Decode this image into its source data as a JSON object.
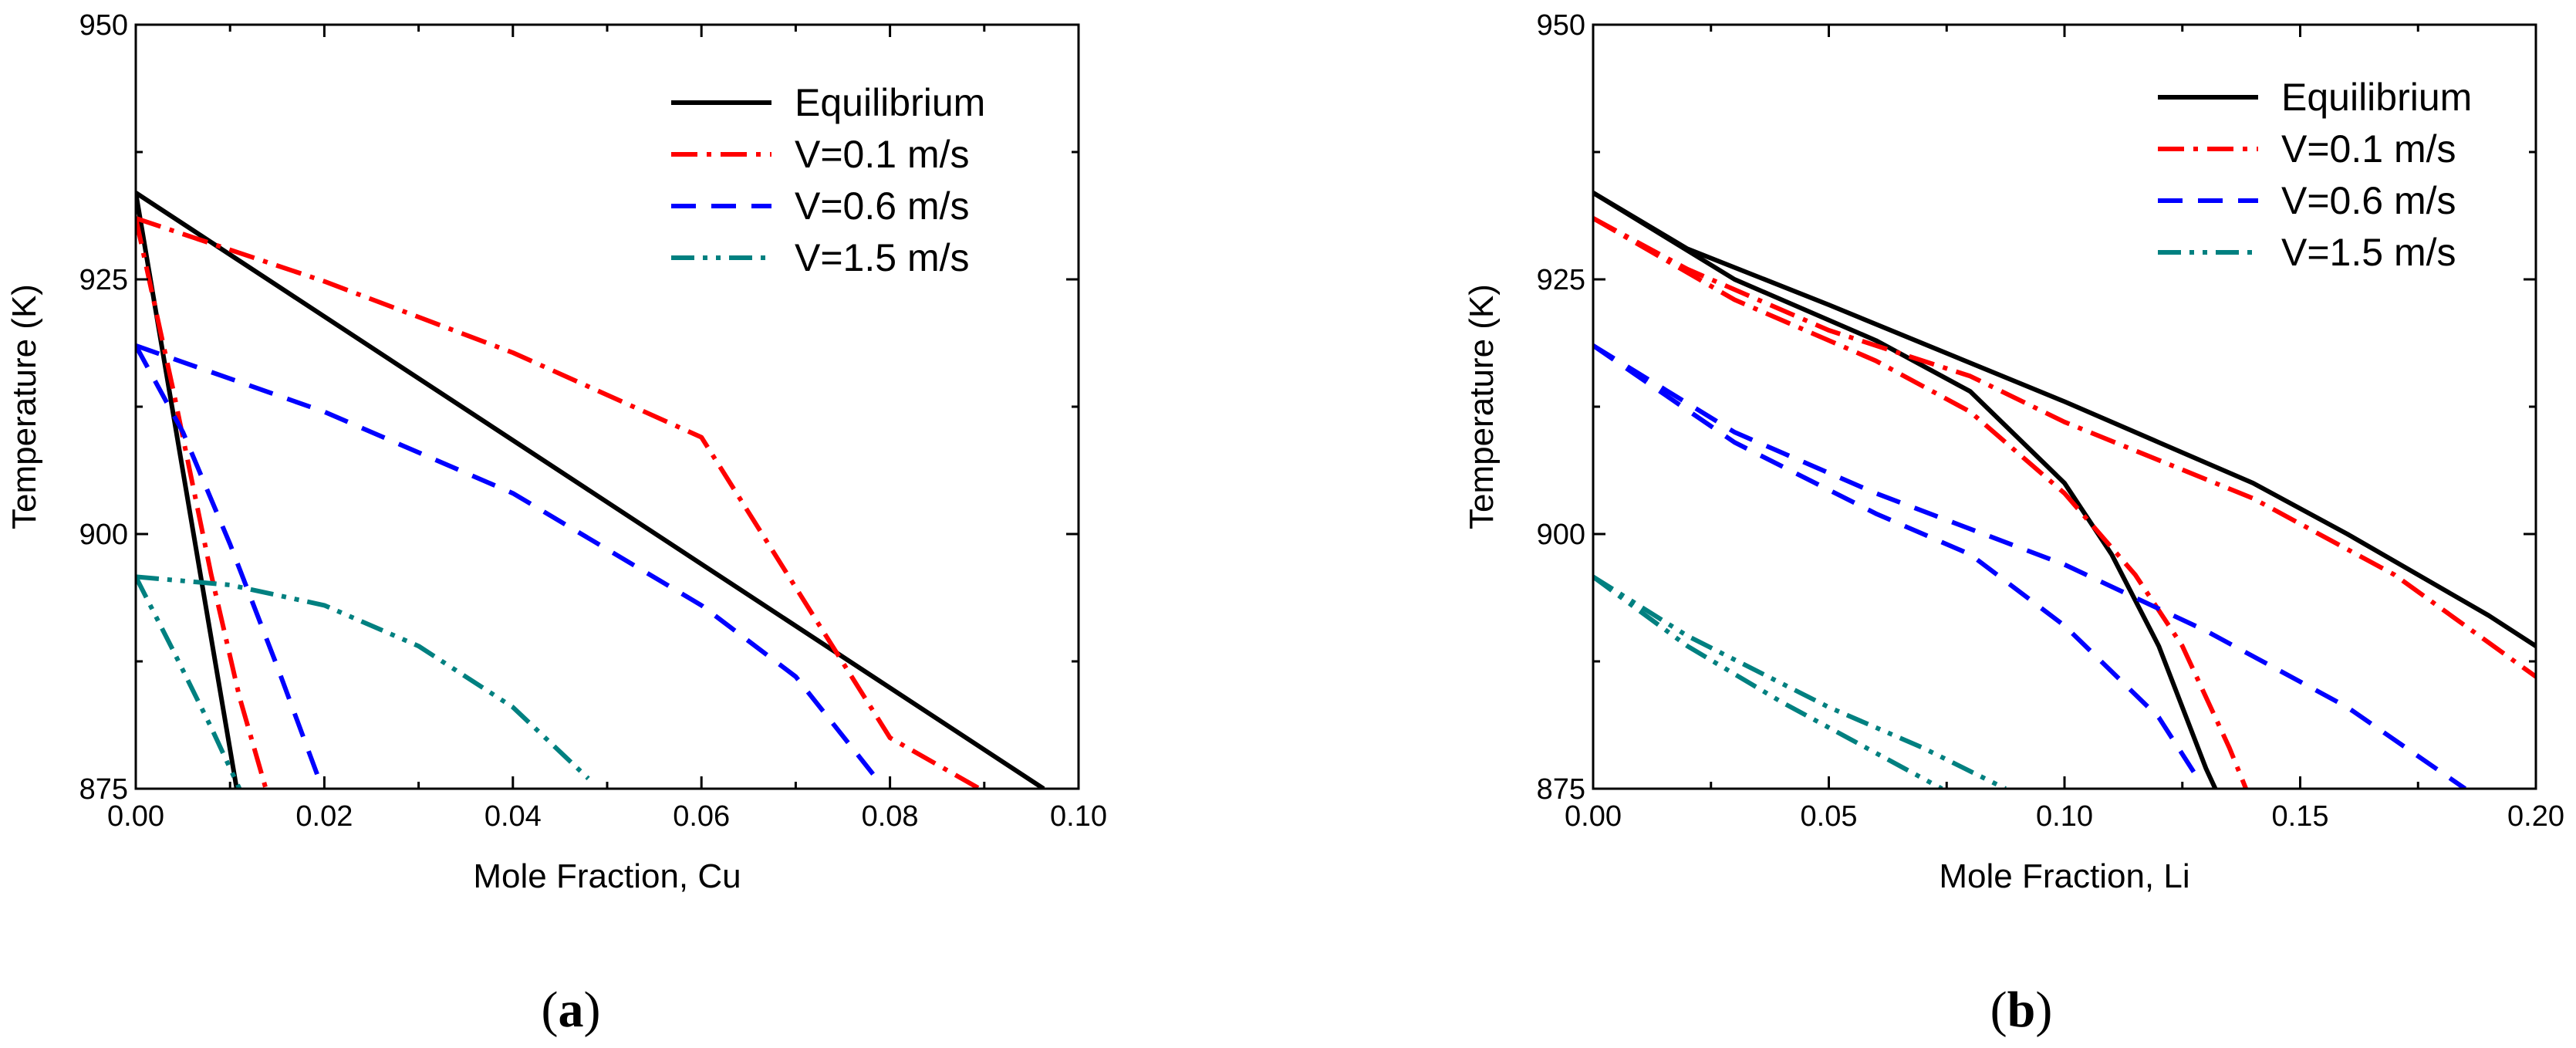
{
  "chart_data": [
    {
      "type": "line",
      "panel": "a",
      "xlabel": "Mole Fraction, Cu",
      "ylabel": "Temperature (K)",
      "xlim": [
        0.0,
        0.1
      ],
      "ylim": [
        875,
        950
      ],
      "xticks": [
        "0.00",
        "0.02",
        "0.04",
        "0.06",
        "0.08",
        "0.10"
      ],
      "yticks": [
        "875",
        "900",
        "925",
        "950"
      ],
      "legend_position": "top-right",
      "series": [
        {
          "name": "Equilibrium",
          "style": "solid",
          "color": "#000000",
          "points": [
            [
              0.0,
              933.5
            ],
            [
              0.0963,
              875
            ]
          ]
        },
        {
          "name": "Equilibrium",
          "style": "solid",
          "color": "#000000",
          "points": [
            [
              0.0,
              933.5
            ],
            [
              0.0107,
              875
            ]
          ]
        },
        {
          "name": "V=0.1 m/s",
          "style": "dashdot",
          "color": "#ff0000",
          "points": [
            [
              0.0,
              931.0
            ],
            [
              0.02,
              924.8
            ],
            [
              0.04,
              917.8
            ],
            [
              0.06,
              909.5
            ],
            [
              0.08,
              880.0
            ],
            [
              0.0895,
              875
            ]
          ]
        },
        {
          "name": "V=0.1 m/s",
          "style": "dashdot",
          "color": "#ff0000",
          "points": [
            [
              0.0,
              931.0
            ],
            [
              0.004,
              914.0
            ],
            [
              0.008,
              896.0
            ],
            [
              0.011,
              884.0
            ],
            [
              0.0138,
              875
            ]
          ]
        },
        {
          "name": "V=0.6 m/s",
          "style": "dashed",
          "color": "#0000ff",
          "points": [
            [
              0.0,
              918.5
            ],
            [
              0.02,
              912.0
            ],
            [
              0.04,
              904.0
            ],
            [
              0.06,
              893.0
            ],
            [
              0.07,
              886.0
            ],
            [
              0.079,
              875.5
            ]
          ]
        },
        {
          "name": "V=0.6 m/s",
          "style": "dashed",
          "color": "#0000ff",
          "points": [
            [
              0.0,
              918.5
            ],
            [
              0.005,
              910.0
            ],
            [
              0.01,
              899.0
            ],
            [
              0.015,
              887.0
            ],
            [
              0.0198,
              875
            ]
          ]
        },
        {
          "name": "V=1.5 m/s",
          "style": "dashdotdot",
          "color": "#008080",
          "points": [
            [
              0.0,
              895.8
            ],
            [
              0.01,
              895.0
            ],
            [
              0.02,
              893.0
            ],
            [
              0.03,
              889.0
            ],
            [
              0.04,
              883.0
            ],
            [
              0.048,
              876.0
            ]
          ]
        },
        {
          "name": "V=1.5 m/s",
          "style": "dashdotdot",
          "color": "#008080",
          "points": [
            [
              0.0,
              895.8
            ],
            [
              0.004,
              888.5
            ],
            [
              0.008,
              881.0
            ],
            [
              0.011,
              875
            ]
          ]
        }
      ]
    },
    {
      "type": "line",
      "panel": "b",
      "xlabel": "Mole Fraction, Li",
      "ylabel": "Temperature (K)",
      "xlim": [
        0.0,
        0.2
      ],
      "ylim": [
        875,
        950
      ],
      "xticks": [
        "0.00",
        "0.05",
        "0.10",
        "0.15",
        "0.20"
      ],
      "yticks": [
        "875",
        "900",
        "925",
        "950"
      ],
      "legend_position": "top-right",
      "series": [
        {
          "name": "Equilibrium",
          "style": "solid",
          "color": "#000000",
          "points": [
            [
              0.0,
              933.5
            ],
            [
              0.02,
              928.0
            ],
            [
              0.05,
              922.5
            ],
            [
              0.1,
              913.0
            ],
            [
              0.12,
              909.0
            ],
            [
              0.14,
              905.0
            ],
            [
              0.16,
              900.0
            ],
            [
              0.19,
              892.0
            ],
            [
              0.2,
              889.0
            ]
          ]
        },
        {
          "name": "Equilibrium",
          "style": "solid",
          "color": "#000000",
          "points": [
            [
              0.0,
              933.5
            ],
            [
              0.03,
              925.0
            ],
            [
              0.06,
              919.0
            ],
            [
              0.08,
              914.0
            ],
            [
              0.1,
              905.0
            ],
            [
              0.11,
              898.0
            ],
            [
              0.12,
              889.0
            ],
            [
              0.13,
              877.0
            ],
            [
              0.132,
              875
            ]
          ]
        },
        {
          "name": "V=0.1 m/s",
          "style": "dashdot",
          "color": "#ff0000",
          "points": [
            [
              0.0,
              931.0
            ],
            [
              0.02,
              926.0
            ],
            [
              0.05,
              920.0
            ],
            [
              0.08,
              915.5
            ],
            [
              0.1,
              911.0
            ],
            [
              0.14,
              903.5
            ],
            [
              0.17,
              896.0
            ],
            [
              0.2,
              886.0
            ]
          ]
        },
        {
          "name": "V=0.1 m/s",
          "style": "dashdot",
          "color": "#ff0000",
          "points": [
            [
              0.0,
              931.0
            ],
            [
              0.03,
              923.0
            ],
            [
              0.06,
              917.0
            ],
            [
              0.08,
              912.0
            ],
            [
              0.1,
              904.0
            ],
            [
              0.115,
              896.0
            ],
            [
              0.125,
              889.0
            ],
            [
              0.135,
              879.0
            ],
            [
              0.1385,
              875
            ]
          ]
        },
        {
          "name": "V=0.6 m/s",
          "style": "dashed",
          "color": "#0000ff",
          "points": [
            [
              0.0,
              918.5
            ],
            [
              0.03,
              910.0
            ],
            [
              0.06,
              904.0
            ],
            [
              0.1,
              897.0
            ],
            [
              0.13,
              890.5
            ],
            [
              0.16,
              883.0
            ],
            [
              0.185,
              875
            ]
          ]
        },
        {
          "name": "V=0.6 m/s",
          "style": "dashed",
          "color": "#0000ff",
          "points": [
            [
              0.0,
              918.5
            ],
            [
              0.03,
              909.0
            ],
            [
              0.06,
              902.0
            ],
            [
              0.08,
              898.0
            ],
            [
              0.1,
              891.0
            ],
            [
              0.12,
              882.0
            ],
            [
              0.129,
              875.5
            ]
          ]
        },
        {
          "name": "V=1.5 m/s",
          "style": "dashdotdot",
          "color": "#008080",
          "points": [
            [
              0.0,
              895.8
            ],
            [
              0.02,
              890.0
            ],
            [
              0.05,
              883.0
            ],
            [
              0.07,
              879.0
            ],
            [
              0.0875,
              875
            ]
          ]
        },
        {
          "name": "V=1.5 m/s",
          "style": "dashdotdot",
          "color": "#008080",
          "points": [
            [
              0.0,
              895.8
            ],
            [
              0.02,
              889.0
            ],
            [
              0.04,
              883.5
            ],
            [
              0.06,
              878.5
            ],
            [
              0.074,
              875
            ]
          ]
        }
      ]
    }
  ],
  "legend": {
    "entries": [
      {
        "label": "Equilibrium",
        "style": "solid",
        "color": "#000000"
      },
      {
        "label": "V=0.1 m/s",
        "style": "dashdot",
        "color": "#ff0000"
      },
      {
        "label": "V=0.6 m/s",
        "style": "dashed",
        "color": "#0000ff"
      },
      {
        "label": "V=1.5 m/s",
        "style": "dashdotdot",
        "color": "#008080"
      }
    ]
  },
  "captions": {
    "a_open": "(",
    "a_letter": "a",
    "a_close": ")",
    "b_open": "(",
    "b_letter": "b",
    "b_close": ")"
  }
}
